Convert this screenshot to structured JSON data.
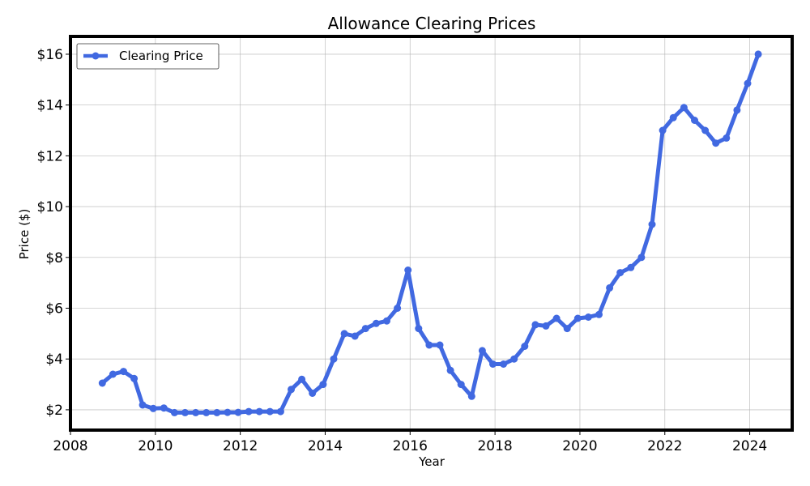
{
  "chart_data": {
    "type": "line",
    "title": "Allowance Clearing Prices",
    "xlabel": "Year",
    "ylabel": "Price ($)",
    "xlim": [
      2008,
      2025
    ],
    "ylim": [
      1.2,
      16.7
    ],
    "x_ticks": [
      2008,
      2010,
      2012,
      2014,
      2016,
      2018,
      2020,
      2022,
      2024
    ],
    "x_tick_labels": [
      "2008",
      "2010",
      "2012",
      "2014",
      "2016",
      "2018",
      "2020",
      "2022",
      "2024"
    ],
    "y_ticks": [
      2,
      4,
      6,
      8,
      10,
      12,
      14,
      16
    ],
    "y_tick_labels": [
      "$2",
      "$4",
      "$6",
      "$8",
      "$10",
      "$12",
      "$14",
      "$16"
    ],
    "grid": true,
    "legend_position": "upper-left",
    "series": [
      {
        "name": "Clearing Price",
        "color": "#4169e1",
        "x": [
          2008.75,
          2009.0,
          2009.25,
          2009.5,
          2009.7,
          2009.95,
          2010.2,
          2010.45,
          2010.7,
          2010.95,
          2011.2,
          2011.45,
          2011.7,
          2011.95,
          2012.2,
          2012.45,
          2012.7,
          2012.95,
          2013.2,
          2013.45,
          2013.7,
          2013.95,
          2014.2,
          2014.45,
          2014.7,
          2014.95,
          2015.2,
          2015.45,
          2015.7,
          2015.95,
          2016.2,
          2016.45,
          2016.7,
          2016.95,
          2017.2,
          2017.45,
          2017.7,
          2017.95,
          2018.2,
          2018.45,
          2018.7,
          2018.95,
          2019.2,
          2019.45,
          2019.7,
          2019.95,
          2020.2,
          2020.45,
          2020.7,
          2020.95,
          2021.2,
          2021.45,
          2021.7,
          2021.95,
          2022.2,
          2022.45,
          2022.7,
          2022.95,
          2023.2,
          2023.45,
          2023.7,
          2023.95,
          2024.2
        ],
        "values": [
          3.05,
          3.4,
          3.51,
          3.23,
          2.19,
          2.05,
          2.07,
          1.89,
          1.89,
          1.89,
          1.89,
          1.89,
          1.9,
          1.9,
          1.93,
          1.93,
          1.93,
          1.93,
          2.8,
          3.2,
          2.65,
          3.0,
          4.0,
          5.0,
          4.9,
          5.2,
          5.4,
          5.5,
          6.0,
          7.5,
          5.2,
          4.55,
          4.55,
          3.55,
          3.0,
          2.53,
          4.33,
          3.8,
          3.8,
          4.0,
          4.5,
          5.35,
          5.3,
          5.6,
          5.2,
          5.6,
          5.65,
          5.75,
          6.8,
          7.4,
          7.6,
          8.0,
          9.3,
          13.0,
          13.5,
          13.9,
          13.4,
          13.0,
          12.5,
          12.7,
          13.8,
          14.85,
          16.0
        ]
      }
    ]
  }
}
